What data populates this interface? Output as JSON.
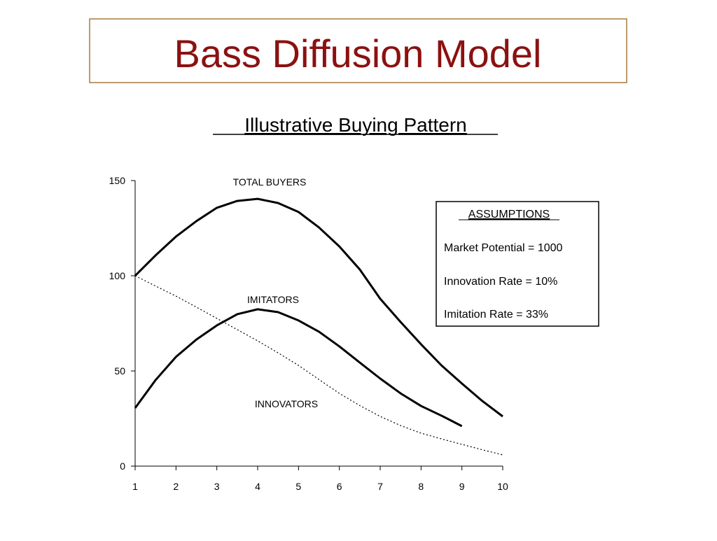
{
  "slide_title": "Bass  Diffusion  Model",
  "assumptions": {
    "title": "ASSUMPTIONS",
    "lines": [
      "Market Potential = 1000",
      "Innovation Rate = 10%",
      "Imitation Rate = 33%"
    ]
  },
  "chart_data": {
    "type": "line",
    "title": "Illustrative  Buying  Pattern",
    "x": [
      1,
      1.5,
      2,
      2.5,
      3,
      3.5,
      4,
      4.5,
      5,
      5.5,
      6,
      6.5,
      7,
      7.5,
      8,
      8.5,
      9,
      9.5,
      10
    ],
    "series": [
      {
        "name": "TOTAL BUYERS",
        "color": "#000000",
        "style": "solid",
        "values": [
          100,
          110.7,
          120.6,
          128.7,
          135.7,
          139.3,
          140.4,
          138.2,
          133.5,
          125.4,
          115.4,
          103.3,
          87.9,
          75.7,
          64,
          52.9,
          43.4,
          34.2,
          26.1
        ]
      },
      {
        "name": "IMITATORS",
        "color": "#000000",
        "style": "solid",
        "values": [
          30.5,
          45.2,
          57.4,
          66.5,
          73.9,
          79.8,
          82.4,
          80.9,
          76.5,
          70.6,
          62.9,
          54.4,
          46,
          38.2,
          31.6,
          26.5,
          21,
          null,
          null
        ]
      },
      {
        "name": "INNOVATORS",
        "color": "#000000",
        "style": "dotted",
        "values": [
          100,
          94.6,
          89.3,
          83.5,
          77.6,
          71.7,
          65.8,
          59.5,
          52.9,
          45.5,
          38.2,
          31.8,
          26.1,
          21.3,
          17.3,
          14.3,
          11.4,
          8.6,
          5.9
        ]
      }
    ],
    "xlim": [
      1,
      10
    ],
    "xticks": [
      1,
      2,
      3,
      4,
      5,
      6,
      7,
      8,
      9,
      10
    ],
    "ylim": [
      0,
      150
    ],
    "yticks": [
      0,
      50,
      100,
      150
    ],
    "grid": false
  }
}
